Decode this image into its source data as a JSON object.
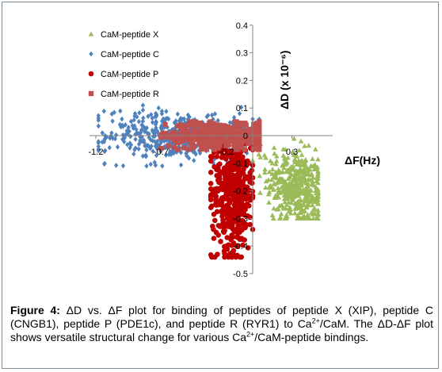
{
  "chart_data": {
    "type": "scatter",
    "title": "",
    "xlabel": "ΔF(Hz)",
    "ylabel": "ΔD (x 10⁻⁶)",
    "xlim": [
      -1.2,
      0.55
    ],
    "ylim": [
      -0.5,
      0.4
    ],
    "x_ticks": [
      "-1.2",
      "-0.7",
      "-0.2",
      "0.3"
    ],
    "y_ticks": [
      "0.4",
      "0.3",
      "0.2",
      "0.1",
      "0",
      "-0.1",
      "-0.2",
      "-0.3",
      "-0.4",
      "-0.5"
    ],
    "legend_position": "top-left",
    "series": [
      {
        "name": "CaM-peptide X",
        "color": "#9bbb59",
        "marker": "triangle",
        "cluster": {
          "x_center": 0.33,
          "x_spread": 0.11,
          "y_center": -0.19,
          "y_spread": 0.07,
          "count": 420
        },
        "points": [
          [
            0.02,
            0.0
          ],
          [
            0.06,
            -0.03
          ],
          [
            0.1,
            -0.08
          ],
          [
            0.15,
            -0.1
          ],
          [
            0.2,
            -0.13
          ],
          [
            0.28,
            -0.18
          ],
          [
            0.35,
            -0.2
          ],
          [
            0.42,
            -0.25
          ],
          [
            0.46,
            -0.28
          ],
          [
            0.48,
            -0.24
          ],
          [
            0.37,
            -0.02
          ],
          [
            0.4,
            -0.1
          ],
          [
            0.25,
            -0.05
          ],
          [
            0.44,
            -0.16
          ]
        ]
      },
      {
        "name": "CaM-peptide C",
        "color": "#4f81bd",
        "marker": "diamond",
        "cluster": {
          "x_center": -0.55,
          "x_spread": 0.28,
          "y_center": 0.0,
          "y_spread": 0.05,
          "count": 520
        },
        "points": [
          [
            -1.13,
            0.0
          ],
          [
            -1.07,
            -0.01
          ],
          [
            -1.15,
            0.01
          ],
          [
            -0.95,
            0.03
          ],
          [
            -0.9,
            0.08
          ],
          [
            -0.8,
            0.07
          ],
          [
            -0.72,
            0.1
          ],
          [
            -0.6,
            -0.06
          ],
          [
            -0.45,
            -0.09
          ],
          [
            -0.3,
            -0.1
          ],
          [
            -0.2,
            -0.09
          ],
          [
            -0.15,
            0.05
          ],
          [
            -0.1,
            0.08
          ],
          [
            0.0,
            0.06
          ]
        ]
      },
      {
        "name": "CaM-peptide P",
        "color": "#c00000",
        "marker": "circle",
        "cluster": {
          "x_center": -0.15,
          "x_spread": 0.08,
          "y_center": -0.2,
          "y_spread": 0.11,
          "count": 480
        },
        "points": [
          [
            -0.25,
            -0.05
          ],
          [
            -0.05,
            -0.03
          ],
          [
            -0.28,
            -0.22
          ],
          [
            -0.27,
            -0.43
          ],
          [
            -0.2,
            -0.4
          ],
          [
            -0.1,
            -0.35
          ],
          [
            -0.08,
            -0.22
          ],
          [
            -0.03,
            -0.1
          ],
          [
            -0.22,
            -0.35
          ],
          [
            -0.16,
            -0.3
          ]
        ]
      },
      {
        "name": "CaM-peptide R",
        "color": "#c0504d",
        "marker": "square",
        "cluster": {
          "x_center": -0.25,
          "x_spread": 0.2,
          "y_center": 0.0,
          "y_spread": 0.025,
          "count": 360
        },
        "points": [
          [
            -0.67,
            0.04
          ],
          [
            -0.6,
            -0.02
          ],
          [
            -0.55,
            0.03
          ],
          [
            0.02,
            0.0
          ],
          [
            0.04,
            -0.02
          ],
          [
            -0.1,
            -0.04
          ],
          [
            -0.3,
            0.03
          ]
        ]
      }
    ]
  },
  "caption": {
    "label": "Figure 4:",
    "parts": [
      {
        "text": " ΔD vs. ΔF plot for binding of peptides of peptide X (XIP), peptide C (CNGB1), peptide P (PDE1c), and peptide R (RYR1) to Ca"
      },
      {
        "text": "2+",
        "sup": true
      },
      {
        "text": "/CaM. The ΔD-ΔF plot shows versatile structural change for various Ca"
      },
      {
        "text": "2+",
        "sup": true
      },
      {
        "text": "/CaM-peptide bindings."
      }
    ]
  }
}
